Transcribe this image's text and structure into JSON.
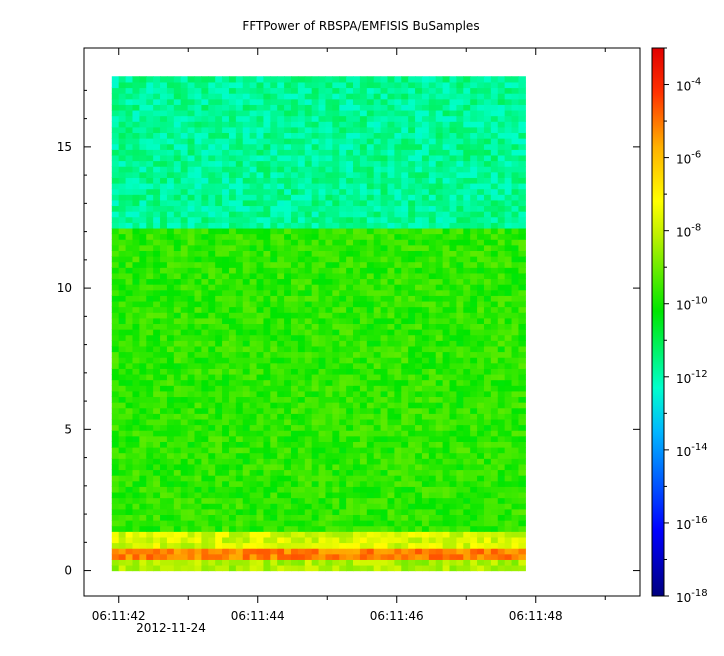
{
  "chart_data": {
    "type": "heatmap",
    "title": "FFTPower of RBSPA/EMFISIS  BuSamples",
    "xlabel": "",
    "ylabel": "",
    "x_ticks": [
      "06:11:42",
      "06:11:44",
      "06:11:46",
      "06:11:48"
    ],
    "x_date_label": "2012-11-24",
    "x_range_seconds": [
      41.5,
      49.5
    ],
    "data_x_range_seconds": [
      41.9,
      47.85
    ],
    "y_ticks": [
      0,
      5,
      10,
      15
    ],
    "ylim": [
      -0.9,
      18.5
    ],
    "data_y_range": [
      0.0,
      17.5
    ],
    "colorbar": {
      "scale": "log",
      "range_exp": [
        -18,
        -3
      ],
      "tick_exponents": [
        -4,
        -6,
        -8,
        -10,
        -12,
        -14,
        -16,
        -18
      ],
      "tick_base": "10"
    },
    "spectral_bands": [
      {
        "band": "0.0-0.3",
        "power_exp": -9
      },
      {
        "band": "0.3-0.8",
        "power_exp": -6
      },
      {
        "band": "0.8-1.4",
        "power_exp": -8.5
      },
      {
        "band": "1.4-12.2",
        "power_exp": -10.5
      },
      {
        "band": "12.2-17.5",
        "power_exp": -12.5
      }
    ],
    "grid": false,
    "colors": {
      "background": "#ffffff",
      "axis": "#000000"
    }
  }
}
